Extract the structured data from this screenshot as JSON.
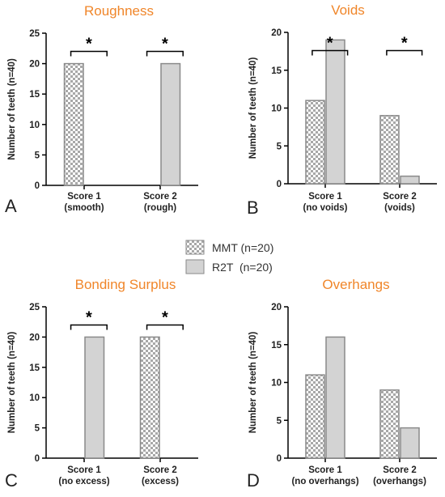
{
  "legend": [
    {
      "name": "MMT (n=20)",
      "pattern": "checker",
      "color": "#a8a8a8"
    },
    {
      "name": "R2T  (n=20)",
      "pattern": "solid",
      "color": "#d3d3d3"
    }
  ],
  "significance_marker": "*",
  "colors": {
    "title": "#f0862a",
    "bar_edge": "#8a8a8a",
    "solid_fill": "#d3d3d3",
    "checker_dark": "#a8a8a8",
    "axis": "#000000"
  },
  "chart_data": [
    {
      "type": "bar",
      "panel": "A",
      "title": "Roughness",
      "ylabel": "Number of teeth (n=40)",
      "ylim": [
        0,
        25
      ],
      "yticks": [
        0,
        5,
        10,
        15,
        20,
        25
      ],
      "categories": [
        [
          "Score 1",
          "(smooth)"
        ],
        [
          "Score 2",
          "(rough)"
        ]
      ],
      "series": [
        {
          "name": "MMT (n=20)",
          "values": [
            20,
            0
          ]
        },
        {
          "name": "R2T  (n=20)",
          "values": [
            0,
            20
          ]
        }
      ],
      "significance": [
        true,
        true
      ]
    },
    {
      "type": "bar",
      "panel": "B",
      "title": "Voids",
      "ylabel": "Number of teeth (n=40)",
      "ylim": [
        0,
        20
      ],
      "yticks": [
        0,
        5,
        10,
        15,
        20
      ],
      "categories": [
        [
          "Score 1",
          "(no voids)"
        ],
        [
          "Score 2",
          "(voids)"
        ]
      ],
      "series": [
        {
          "name": "MMT (n=20)",
          "values": [
            11,
            9
          ]
        },
        {
          "name": "R2T  (n=20)",
          "values": [
            19,
            1
          ]
        }
      ],
      "significance": [
        true,
        true
      ]
    },
    {
      "type": "bar",
      "panel": "C",
      "title": "Bonding Surplus",
      "ylabel": "Number of teeth (n=40)",
      "ylim": [
        0,
        25
      ],
      "yticks": [
        0,
        5,
        10,
        15,
        20,
        25
      ],
      "categories": [
        [
          "Score 1",
          "(no excess)"
        ],
        [
          "Score 2",
          "(excess)"
        ]
      ],
      "series": [
        {
          "name": "MMT (n=20)",
          "values": [
            0,
            20
          ]
        },
        {
          "name": "R2T  (n=20)",
          "values": [
            20,
            0
          ]
        }
      ],
      "significance": [
        true,
        true
      ]
    },
    {
      "type": "bar",
      "panel": "D",
      "title": "Overhangs",
      "ylabel": "Number of teeth (n=40)",
      "ylim": [
        0,
        20
      ],
      "yticks": [
        0,
        5,
        10,
        15,
        20
      ],
      "categories": [
        [
          "Score 1",
          "(no overhangs)"
        ],
        [
          "Score 2",
          "(overhangs)"
        ]
      ],
      "series": [
        {
          "name": "MMT (n=20)",
          "values": [
            11,
            9
          ]
        },
        {
          "name": "R2T  (n=20)",
          "values": [
            16,
            4
          ]
        }
      ],
      "significance": [
        false,
        false
      ]
    }
  ]
}
